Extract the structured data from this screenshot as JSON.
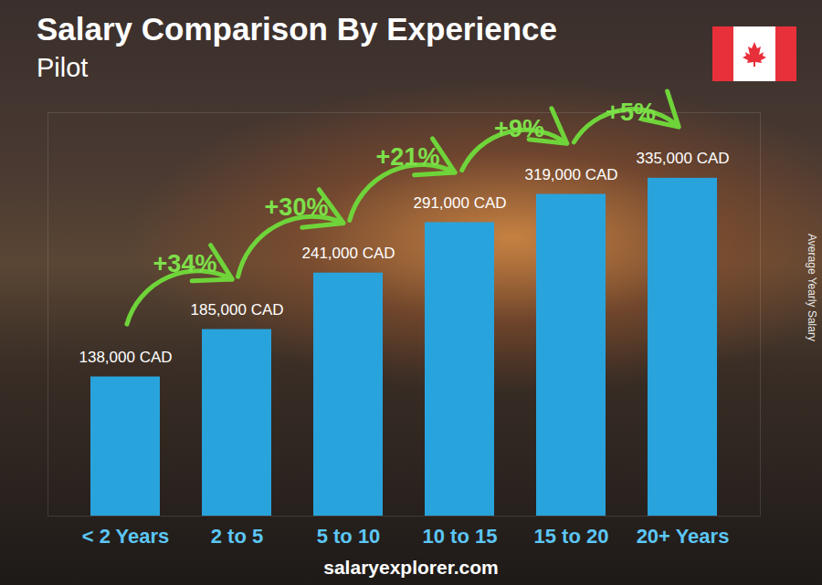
{
  "chart_data": {
    "type": "bar",
    "title": "Salary Comparison By Experience",
    "subtitle": "Pilot",
    "categories": [
      "< 2 Years",
      "2 to 5",
      "5 to 10",
      "10 to 15",
      "15 to 20",
      "20+ Years"
    ],
    "values": [
      138000,
      185000,
      241000,
      291000,
      319000,
      335000
    ],
    "value_labels": [
      "138,000 CAD",
      "185,000 CAD",
      "241,000 CAD",
      "291,000 CAD",
      "319,000 CAD",
      "335,000 CAD"
    ],
    "data_labels": true,
    "annotations": [
      "+34%",
      "+30%",
      "+21%",
      "+9%",
      "+5%"
    ],
    "y_label": "Average Yearly Salary",
    "source": "salaryexplorer.com",
    "color": "#29a3dc",
    "ylim": [
      0,
      400000
    ],
    "tick_labels": "x",
    "grid": false
  }
}
